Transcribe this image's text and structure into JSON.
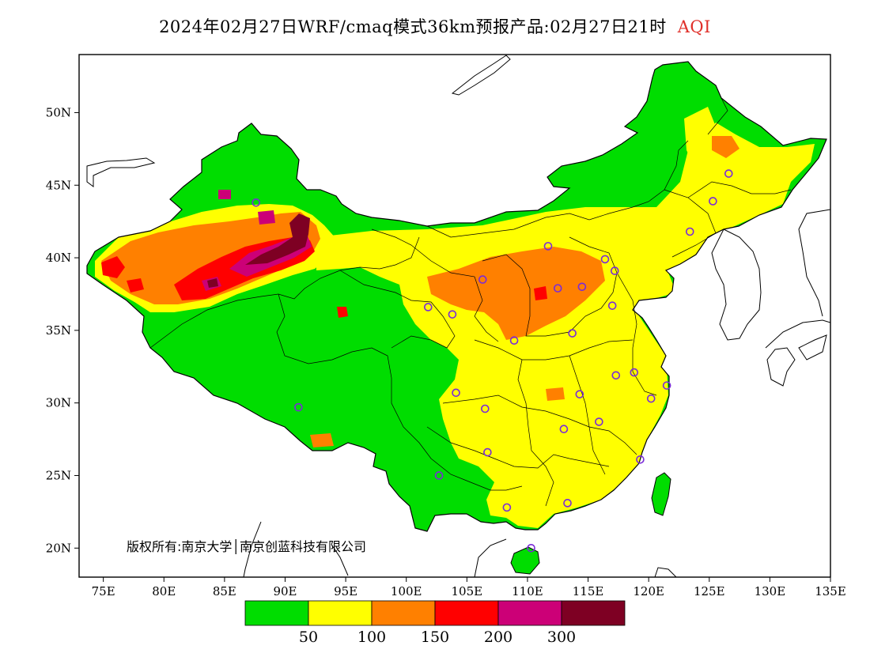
{
  "title": {
    "main": "2024年02月27日WRF/cmaq模式36km预报产品:02月27日21时",
    "variable": "AQI",
    "variable_color": "#e0302a"
  },
  "map": {
    "extent": {
      "lon": [
        73,
        135
      ],
      "lat": [
        18,
        54
      ]
    },
    "x_ticks": [
      {
        "lon": 75,
        "label": "75E"
      },
      {
        "lon": 80,
        "label": "80E"
      },
      {
        "lon": 85,
        "label": "85E"
      },
      {
        "lon": 90,
        "label": "90E"
      },
      {
        "lon": 95,
        "label": "95E"
      },
      {
        "lon": 100,
        "label": "100E"
      },
      {
        "lon": 105,
        "label": "105E"
      },
      {
        "lon": 110,
        "label": "110E"
      },
      {
        "lon": 115,
        "label": "115E"
      },
      {
        "lon": 120,
        "label": "120E"
      },
      {
        "lon": 125,
        "label": "125E"
      },
      {
        "lon": 130,
        "label": "130E"
      },
      {
        "lon": 135,
        "label": "135E"
      }
    ],
    "y_ticks": [
      {
        "lat": 20,
        "label": "20N"
      },
      {
        "lat": 25,
        "label": "25N"
      },
      {
        "lat": 30,
        "label": "30N"
      },
      {
        "lat": 35,
        "label": "35N"
      },
      {
        "lat": 40,
        "label": "40N"
      },
      {
        "lat": 45,
        "label": "45N"
      },
      {
        "lat": 50,
        "label": "50N"
      }
    ],
    "copyright": "版权所有:南京大学│南京创蓝科技有限公司",
    "stations": [
      {
        "lon": 87.6,
        "lat": 43.8
      },
      {
        "lon": 91.1,
        "lat": 29.7
      },
      {
        "lon": 101.8,
        "lat": 36.6
      },
      {
        "lon": 103.8,
        "lat": 36.1
      },
      {
        "lon": 106.3,
        "lat": 38.5
      },
      {
        "lon": 111.7,
        "lat": 40.8
      },
      {
        "lon": 112.5,
        "lat": 37.9
      },
      {
        "lon": 114.5,
        "lat": 38.0
      },
      {
        "lon": 116.4,
        "lat": 39.9
      },
      {
        "lon": 117.2,
        "lat": 39.1
      },
      {
        "lon": 117.0,
        "lat": 36.7
      },
      {
        "lon": 113.7,
        "lat": 34.8
      },
      {
        "lon": 108.9,
        "lat": 34.3
      },
      {
        "lon": 114.3,
        "lat": 30.6
      },
      {
        "lon": 117.3,
        "lat": 31.9
      },
      {
        "lon": 118.8,
        "lat": 32.1
      },
      {
        "lon": 121.5,
        "lat": 31.2
      },
      {
        "lon": 120.2,
        "lat": 30.3
      },
      {
        "lon": 115.9,
        "lat": 28.7
      },
      {
        "lon": 113.0,
        "lat": 28.2
      },
      {
        "lon": 106.5,
        "lat": 29.6
      },
      {
        "lon": 104.1,
        "lat": 30.7
      },
      {
        "lon": 106.7,
        "lat": 26.6
      },
      {
        "lon": 102.7,
        "lat": 25.0
      },
      {
        "lon": 108.3,
        "lat": 22.8
      },
      {
        "lon": 113.3,
        "lat": 23.1
      },
      {
        "lon": 119.3,
        "lat": 26.1
      },
      {
        "lon": 110.3,
        "lat": 20.0
      },
      {
        "lon": 123.4,
        "lat": 41.8
      },
      {
        "lon": 125.3,
        "lat": 43.9
      },
      {
        "lon": 126.6,
        "lat": 45.8
      }
    ]
  },
  "legend": {
    "colors": [
      "#00dd00",
      "#ffff00",
      "#ff8000",
      "#ff0000",
      "#cc0077",
      "#7e0023"
    ],
    "labels": [
      "50",
      "100",
      "150",
      "200",
      "300"
    ]
  }
}
